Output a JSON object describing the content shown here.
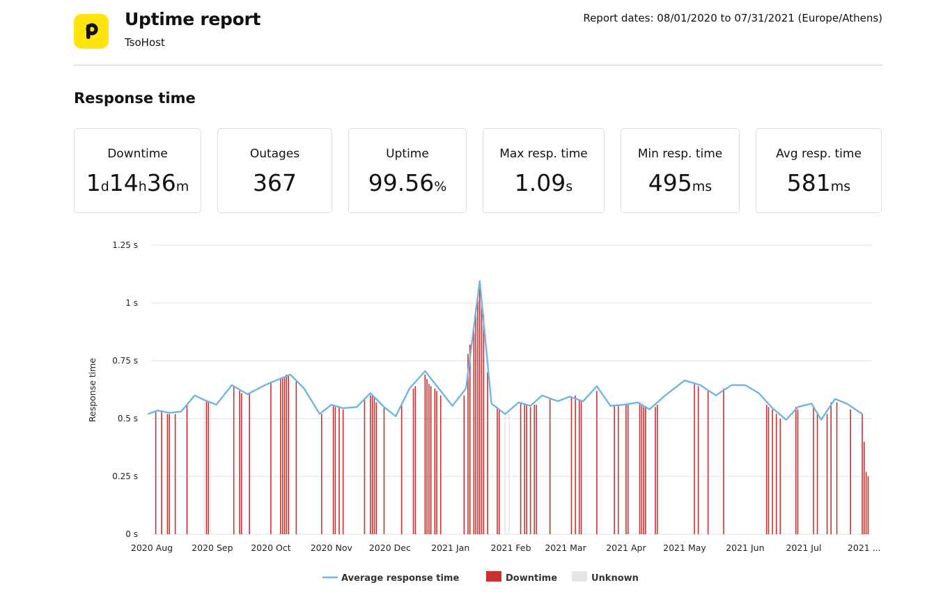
{
  "header": {
    "title": "Uptime report",
    "subtitle": "TsoHost",
    "report_dates": "Report dates: 08/01/2020 to 07/31/2021 (Europe/Athens)",
    "logo_color": "#ffe40d"
  },
  "section_title": "Response time",
  "stats": [
    {
      "label": "Downtime",
      "parts": [
        [
          "1",
          "d"
        ],
        [
          "14",
          "h"
        ],
        [
          "36",
          "m"
        ]
      ]
    },
    {
      "label": "Outages",
      "parts": [
        [
          "367",
          ""
        ]
      ]
    },
    {
      "label": "Uptime",
      "parts": [
        [
          "99.56",
          "%"
        ]
      ]
    },
    {
      "label": "Max resp. time",
      "parts": [
        [
          "1.09",
          "s"
        ]
      ]
    },
    {
      "label": "Min resp. time",
      "parts": [
        [
          "495",
          "ms"
        ]
      ]
    },
    {
      "label": "Avg resp. time",
      "parts": [
        [
          "581",
          "ms"
        ]
      ]
    }
  ],
  "chart_data": {
    "type": "line",
    "ylabel": "Response time",
    "ylim": [
      0,
      1.25
    ],
    "yticks": [
      {
        "v": 0,
        "label": "0 s"
      },
      {
        "v": 0.25,
        "label": "0.25 s"
      },
      {
        "v": 0.5,
        "label": "0.5 s"
      },
      {
        "v": 0.75,
        "label": "0.75 s"
      },
      {
        "v": 1,
        "label": "1 s"
      },
      {
        "v": 1.25,
        "label": "1.25 s"
      }
    ],
    "xlim": [
      "2020-08-01",
      "2021-08-05"
    ],
    "xticks": [
      {
        "date": "2020-08-01",
        "label": "2020 Aug"
      },
      {
        "date": "2020-09-01",
        "label": "2020 Sep"
      },
      {
        "date": "2020-10-01",
        "label": "2020 Oct"
      },
      {
        "date": "2020-11-01",
        "label": "2020 Nov"
      },
      {
        "date": "2020-12-01",
        "label": "2020 Dec"
      },
      {
        "date": "2021-01-01",
        "label": "2021 Jan"
      },
      {
        "date": "2021-02-01",
        "label": "2021 Feb"
      },
      {
        "date": "2021-03-01",
        "label": "2021 Mar"
      },
      {
        "date": "2021-04-01",
        "label": "2021 Apr"
      },
      {
        "date": "2021-05-01",
        "label": "2021 May"
      },
      {
        "date": "2021-06-01",
        "label": "2021 Jun"
      },
      {
        "date": "2021-07-01",
        "label": "2021 Jul"
      },
      {
        "date": "2021-08-01",
        "label": "2021 ..."
      }
    ],
    "grid": true,
    "legend_position": "bottom",
    "colors": {
      "line": "#6fb6e6",
      "downtime": "#cc2f2f",
      "unknown": "#e6e6e6",
      "grid": "#dedede"
    },
    "series": [
      {
        "name": "Average response time",
        "type": "line",
        "points": [
          [
            "2020-07-30",
            0.52
          ],
          [
            "2020-08-04",
            0.535
          ],
          [
            "2020-08-10",
            0.525
          ],
          [
            "2020-08-16",
            0.53
          ],
          [
            "2020-08-23",
            0.6
          ],
          [
            "2020-08-28",
            0.58
          ],
          [
            "2020-09-03",
            0.56
          ],
          [
            "2020-09-11",
            0.645
          ],
          [
            "2020-09-19",
            0.605
          ],
          [
            "2020-09-28",
            0.645
          ],
          [
            "2020-10-05",
            0.67
          ],
          [
            "2020-10-11",
            0.69
          ],
          [
            "2020-10-18",
            0.63
          ],
          [
            "2020-10-26",
            0.52
          ],
          [
            "2020-11-01",
            0.56
          ],
          [
            "2020-11-07",
            0.545
          ],
          [
            "2020-11-14",
            0.55
          ],
          [
            "2020-11-21",
            0.61
          ],
          [
            "2020-11-28",
            0.55
          ],
          [
            "2020-12-04",
            0.51
          ],
          [
            "2020-12-11",
            0.63
          ],
          [
            "2020-12-19",
            0.705
          ],
          [
            "2020-12-27",
            0.62
          ],
          [
            "2021-01-02",
            0.555
          ],
          [
            "2021-01-09",
            0.63
          ],
          [
            "2021-01-16",
            1.095
          ],
          [
            "2021-01-22",
            0.565
          ],
          [
            "2021-01-29",
            0.52
          ],
          [
            "2021-02-05",
            0.57
          ],
          [
            "2021-02-11",
            0.555
          ],
          [
            "2021-02-17",
            0.6
          ],
          [
            "2021-02-25",
            0.575
          ],
          [
            "2021-03-03",
            0.595
          ],
          [
            "2021-03-10",
            0.575
          ],
          [
            "2021-03-17",
            0.64
          ],
          [
            "2021-03-24",
            0.555
          ],
          [
            "2021-03-31",
            0.56
          ],
          [
            "2021-04-07",
            0.57
          ],
          [
            "2021-04-13",
            0.54
          ],
          [
            "2021-04-21",
            0.6
          ],
          [
            "2021-05-01",
            0.665
          ],
          [
            "2021-05-09",
            0.645
          ],
          [
            "2021-05-17",
            0.6
          ],
          [
            "2021-05-25",
            0.645
          ],
          [
            "2021-06-01",
            0.645
          ],
          [
            "2021-06-08",
            0.61
          ],
          [
            "2021-06-15",
            0.545
          ],
          [
            "2021-06-22",
            0.495
          ],
          [
            "2021-06-28",
            0.55
          ],
          [
            "2021-07-05",
            0.565
          ],
          [
            "2021-07-10",
            0.495
          ],
          [
            "2021-07-17",
            0.585
          ],
          [
            "2021-07-23",
            0.565
          ],
          [
            "2021-07-31",
            0.52
          ]
        ]
      },
      {
        "name": "Downtime",
        "type": "bars",
        "points": [
          [
            "2020-08-03",
            0.53
          ],
          [
            "2020-08-06",
            0.53
          ],
          [
            "2020-08-09",
            0.52
          ],
          [
            "2020-08-10",
            0.52
          ],
          [
            "2020-08-13",
            0.52
          ],
          [
            "2020-08-19",
            0.56
          ],
          [
            "2020-08-29",
            0.58
          ],
          [
            "2020-08-30",
            0.57
          ],
          [
            "2020-09-12",
            0.64
          ],
          [
            "2020-09-15",
            0.62
          ],
          [
            "2020-09-16",
            0.61
          ],
          [
            "2020-09-20",
            0.61
          ],
          [
            "2020-10-01",
            0.66
          ],
          [
            "2020-10-06",
            0.67
          ],
          [
            "2020-10-07",
            0.68
          ],
          [
            "2020-10-08",
            0.68
          ],
          [
            "2020-10-09",
            0.69
          ],
          [
            "2020-10-10",
            0.69
          ],
          [
            "2020-10-14",
            0.66
          ],
          [
            "2020-10-27",
            0.52
          ],
          [
            "2020-11-02",
            0.56
          ],
          [
            "2020-11-03",
            0.55
          ],
          [
            "2020-11-05",
            0.55
          ],
          [
            "2020-11-07",
            0.54
          ],
          [
            "2020-11-18",
            0.58
          ],
          [
            "2020-11-21",
            0.6
          ],
          [
            "2020-11-22",
            0.6
          ],
          [
            "2020-11-23",
            0.59
          ],
          [
            "2020-11-24",
            0.57
          ],
          [
            "2020-11-28",
            0.55
          ],
          [
            "2020-12-07",
            0.56
          ],
          [
            "2020-12-13",
            0.63
          ],
          [
            "2020-12-14",
            0.64
          ],
          [
            "2020-12-19",
            0.69
          ],
          [
            "2020-12-20",
            0.67
          ],
          [
            "2020-12-21",
            0.65
          ],
          [
            "2020-12-22",
            0.64
          ],
          [
            "2020-12-24",
            0.63
          ],
          [
            "2020-12-25",
            0.62
          ],
          [
            "2020-12-27",
            0.6
          ],
          [
            "2021-01-08",
            0.6
          ],
          [
            "2021-01-10",
            0.78
          ],
          [
            "2021-01-11",
            0.82
          ],
          [
            "2021-01-13",
            0.9
          ],
          [
            "2021-01-14",
            0.98
          ],
          [
            "2021-01-15",
            1.03
          ],
          [
            "2021-01-16",
            1.07
          ],
          [
            "2021-01-17",
            1.02
          ],
          [
            "2021-01-18",
            0.95
          ],
          [
            "2021-01-20",
            0.7
          ],
          [
            "2021-01-25",
            0.55
          ],
          [
            "2021-01-26",
            0.54
          ],
          [
            "2021-02-06",
            0.57
          ],
          [
            "2021-02-08",
            0.56
          ],
          [
            "2021-02-09",
            0.56
          ],
          [
            "2021-02-11",
            0.55
          ],
          [
            "2021-02-13",
            0.56
          ],
          [
            "2021-02-14",
            0.56
          ],
          [
            "2021-02-21",
            0.59
          ],
          [
            "2021-03-04",
            0.59
          ],
          [
            "2021-03-06",
            0.6
          ],
          [
            "2021-03-08",
            0.58
          ],
          [
            "2021-03-09",
            0.58
          ],
          [
            "2021-03-17",
            0.62
          ],
          [
            "2021-03-26",
            0.56
          ],
          [
            "2021-03-28",
            0.56
          ],
          [
            "2021-04-01",
            0.56
          ],
          [
            "2021-04-02",
            0.56
          ],
          [
            "2021-04-08",
            0.57
          ],
          [
            "2021-04-09",
            0.56
          ],
          [
            "2021-04-10",
            0.55
          ],
          [
            "2021-04-11",
            0.55
          ],
          [
            "2021-04-16",
            0.55
          ],
          [
            "2021-04-17",
            0.56
          ],
          [
            "2021-05-06",
            0.65
          ],
          [
            "2021-05-08",
            0.64
          ],
          [
            "2021-05-13",
            0.62
          ],
          [
            "2021-05-21",
            0.63
          ],
          [
            "2021-06-12",
            0.56
          ],
          [
            "2021-06-13",
            0.55
          ],
          [
            "2021-06-15",
            0.54
          ],
          [
            "2021-06-17",
            0.52
          ],
          [
            "2021-06-19",
            0.5
          ],
          [
            "2021-06-27",
            0.55
          ],
          [
            "2021-06-28",
            0.54
          ],
          [
            "2021-07-06",
            0.55
          ],
          [
            "2021-07-08",
            0.52
          ],
          [
            "2021-07-13",
            0.52
          ],
          [
            "2021-07-15",
            0.57
          ],
          [
            "2021-07-18",
            0.57
          ],
          [
            "2021-07-25",
            0.54
          ],
          [
            "2021-07-31",
            0.52
          ],
          [
            "2021-08-01",
            0.4
          ],
          [
            "2021-08-02",
            0.27
          ],
          [
            "2021-08-03",
            0.25
          ]
        ]
      },
      {
        "name": "Unknown",
        "type": "bars",
        "points": [
          [
            "2020-08-28",
            0.58
          ],
          [
            "2020-08-31",
            0.57
          ],
          [
            "2021-01-29",
            0.52
          ],
          [
            "2021-01-31",
            0.53
          ]
        ]
      }
    ]
  }
}
